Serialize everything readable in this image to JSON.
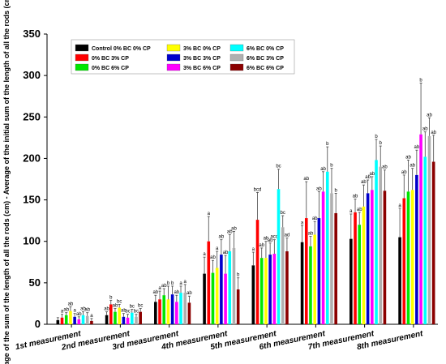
{
  "chart_data": {
    "type": "bar",
    "title": "",
    "xlabel": "",
    "ylabel": "Average of the sum of the length of all the rods (cm) - Average of the initial sum of the length of all the rods (cm)",
    "ylim": [
      0,
      350
    ],
    "yticks": [
      0,
      50,
      100,
      150,
      200,
      250,
      300,
      350
    ],
    "grid": false,
    "legend_position": "top-left",
    "categories": [
      "1st measurement",
      "2nd measurement",
      "3rd measurement",
      "4th measurement",
      "5th measurement",
      "6th measurement",
      "7th measurement",
      "8th measurement"
    ],
    "series": [
      {
        "name": "Control 0% BC 0% CP",
        "color": "#000000",
        "values": [
          5,
          11,
          27,
          61,
          71,
          99,
          103,
          105
        ],
        "errors": [
          3,
          4,
          8,
          20,
          16,
          20,
          30,
          35
        ],
        "labels": [
          "",
          "ab",
          "ab",
          "a",
          "a",
          "a",
          "a",
          "a"
        ]
      },
      {
        "name": "0% BC 3% CP",
        "color": "#ff0000",
        "values": [
          8,
          24,
          30,
          100,
          126,
          128,
          135,
          152
        ],
        "errors": [
          4,
          5,
          10,
          30,
          33,
          44,
          16,
          28
        ],
        "labels": [
          "a",
          "b",
          "a",
          "a",
          "bcd",
          "ab",
          "ab",
          "ab"
        ]
      },
      {
        "name": "0% BC 6% CP",
        "color": "#00e600",
        "values": [
          11,
          15,
          35,
          62,
          80,
          94,
          120,
          160
        ],
        "errors": [
          3,
          4,
          8,
          15,
          12,
          12,
          15,
          38
        ],
        "labels": [
          "ab",
          "ab",
          "ab",
          "ab",
          "ab",
          "ab",
          "ab",
          "ab"
        ]
      },
      {
        "name": "3% BC 0% CP",
        "color": "#ffff00",
        "values": [
          16,
          20,
          30,
          68,
          80,
          108,
          142,
          162
        ],
        "errors": [
          5,
          4,
          16,
          20,
          20,
          16,
          26,
          26
        ],
        "labels": [
          "ab",
          "bc",
          "b",
          "a",
          "ab",
          "ab",
          "ab",
          "ab"
        ]
      },
      {
        "name": "3% BC 3% CP",
        "color": "#0000cc",
        "values": [
          9,
          9,
          36,
          84,
          84,
          128,
          158,
          180
        ],
        "errors": [
          4,
          4,
          10,
          18,
          14,
          32,
          16,
          30
        ],
        "labels": [
          "a",
          "ab",
          "b",
          "ab",
          "ab",
          "ab",
          "ab",
          "ab"
        ]
      },
      {
        "name": "3% BC 6% CP",
        "color": "#ff00ff",
        "values": [
          6,
          8,
          27,
          61,
          85,
          160,
          162,
          229
        ],
        "errors": [
          3,
          4,
          8,
          22,
          17,
          24,
          16,
          62
        ],
        "labels": [
          "ab",
          "bc",
          "ab",
          "ab",
          "acd",
          "ab",
          "ab",
          "b"
        ]
      },
      {
        "name": "6% BC 0% CP",
        "color": "#00ffff",
        "values": [
          11,
          14,
          38,
          88,
          163,
          184,
          198,
          202
        ],
        "errors": [
          4,
          4,
          8,
          20,
          24,
          30,
          25,
          30
        ],
        "labels": [
          "ab",
          "bc",
          "a",
          "ab",
          "bc",
          "b",
          "b",
          "ab"
        ]
      },
      {
        "name": "6% BC 3% CP",
        "color": "#b0b0b0",
        "values": [
          10,
          9,
          38,
          92,
          117,
          158,
          190,
          227
        ],
        "errors": [
          4,
          3,
          10,
          20,
          14,
          30,
          25,
          22
        ],
        "labels": [
          "ab",
          "bc",
          "a",
          "ab",
          "bc",
          "b",
          "b",
          "ab"
        ]
      },
      {
        "name": "6% BC 6% CP",
        "color": "#8b0000",
        "values": [
          4,
          15,
          26,
          42,
          88,
          134,
          161,
          196
        ],
        "errors": [
          3,
          4,
          8,
          14,
          16,
          24,
          25,
          32
        ],
        "labels": [
          "a",
          "bc",
          "ab",
          "b",
          "ad",
          "b",
          "ab",
          "ab"
        ]
      }
    ]
  }
}
